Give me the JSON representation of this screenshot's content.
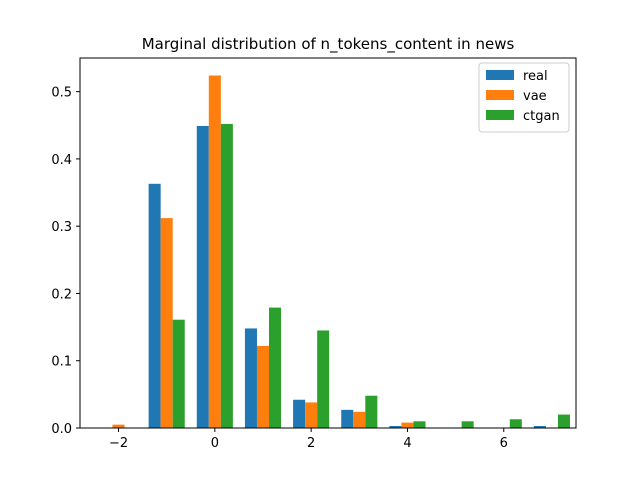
{
  "chart_data": {
    "type": "bar",
    "title": "Marginal distribution of n_tokens_content in news",
    "xlabel": "",
    "ylabel": "",
    "xlim": [
      -2.8,
      7.5
    ],
    "ylim": [
      0,
      0.55
    ],
    "xticks": [
      -2,
      0,
      2,
      4,
      6
    ],
    "yticks": [
      0.0,
      0.1,
      0.2,
      0.3,
      0.4,
      0.5
    ],
    "xtick_labels": [
      "−2",
      "0",
      "2",
      "4",
      "6"
    ],
    "ytick_labels": [
      "0.0",
      "0.1",
      "0.2",
      "0.3",
      "0.4",
      "0.5"
    ],
    "bin_centers": [
      -2,
      -1,
      0,
      1,
      2,
      3,
      4,
      5,
      6,
      7
    ],
    "bar_width_data": 0.25,
    "grid": false,
    "legend_position": "upper right",
    "series": [
      {
        "name": "real",
        "color": "#1f77b4",
        "offset": -1,
        "values": [
          0,
          0.363,
          0.449,
          0.148,
          0.042,
          0.027,
          0.003,
          0,
          0,
          0.003
        ]
      },
      {
        "name": "vae",
        "color": "#ff7f0e",
        "offset": 0,
        "values": [
          0.005,
          0.312,
          0.524,
          0.122,
          0.038,
          0.024,
          0.008,
          0,
          0,
          0
        ]
      },
      {
        "name": "ctgan",
        "color": "#2ca02c",
        "offset": 1,
        "values": [
          0,
          0.161,
          0.452,
          0.179,
          0.145,
          0.048,
          0.01,
          0.01,
          0.013,
          0.02
        ]
      }
    ]
  }
}
